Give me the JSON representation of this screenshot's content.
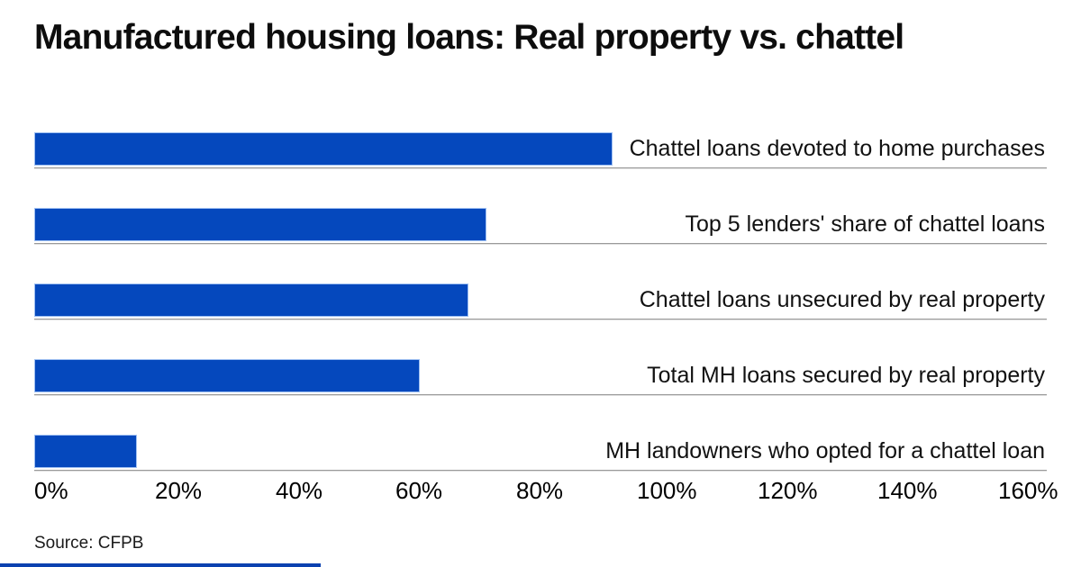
{
  "title": "Manufactured housing loans: Real property vs. chattel",
  "source": "Source: CFPB",
  "colors": {
    "bar": "#0548bd",
    "bar_border": "#9fc0f2",
    "separator": "#9a9a9a",
    "accent_strip": "#0a41b0",
    "text": "#111111"
  },
  "chart_data": {
    "type": "bar",
    "orientation": "horizontal",
    "title": "Manufactured housing loans: Real property vs. chattel",
    "categories": [
      "Chattel loans devoted to home purchases",
      "Top 5 lenders' share of chattel loans",
      "Chattel loans unsecured by real property",
      "Total MH loans secured by real property",
      "MH landowners who opted for a chattel loan"
    ],
    "values": [
      96,
      75,
      72,
      64,
      17
    ],
    "unit": "%",
    "xlabel": "",
    "ylabel": "",
    "xlim": [
      0,
      160
    ],
    "x_ticks": [
      "0%",
      "20%",
      "40%",
      "60%",
      "80%",
      "100%",
      "120%",
      "140%",
      "160%"
    ],
    "grid": false,
    "legend": false,
    "source": "Source: CFPB"
  }
}
